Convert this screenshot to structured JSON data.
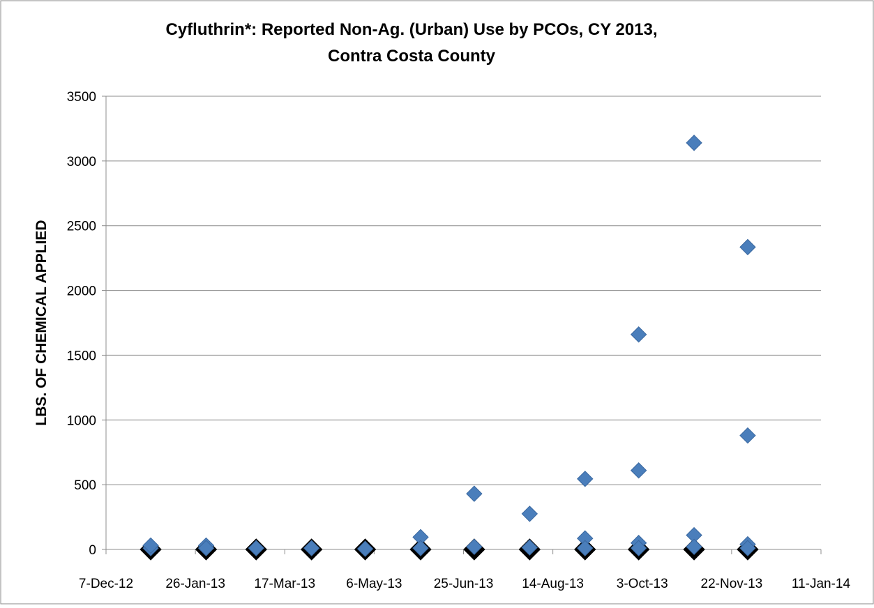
{
  "chart_data": {
    "type": "scatter",
    "title_lines": [
      "Cyfluthrin*: Reported Non-Ag. (Urban) Use by PCOs, CY 2013,",
      "Contra Costa County"
    ],
    "y_label": "LBS. OF CHEMICAL APPLIED",
    "xlim": [
      41250,
      41650
    ],
    "xticks": [
      {
        "value": 41250,
        "label": "7-Dec-12"
      },
      {
        "value": 41300,
        "label": "26-Jan-13"
      },
      {
        "value": 41350,
        "label": "17-Mar-13"
      },
      {
        "value": 41400,
        "label": "6-May-13"
      },
      {
        "value": 41450,
        "label": "25-Jun-13"
      },
      {
        "value": 41500,
        "label": "14-Aug-13"
      },
      {
        "value": 41550,
        "label": "3-Oct-13"
      },
      {
        "value": 41600,
        "label": "22-Nov-13"
      },
      {
        "value": 41650,
        "label": "11-Jan-14"
      }
    ],
    "ylim": [
      0,
      3500
    ],
    "yticks": [
      0,
      500,
      1000,
      1500,
      2000,
      2500,
      3000,
      3500
    ],
    "grid": true,
    "series": [
      {
        "color": "#000000",
        "x": [
          41275,
          41306,
          41334,
          41365,
          41395,
          41426,
          41456,
          41487,
          41518,
          41548,
          41579,
          41609
        ],
        "values": [
          0,
          0,
          0,
          0,
          0,
          0,
          0,
          0,
          0,
          0,
          0,
          0
        ]
      },
      {
        "color": "#4a7ebb",
        "x": [
          41275,
          41275,
          41306,
          41306,
          41334,
          41365,
          41395,
          41426,
          41426,
          41456,
          41456,
          41487,
          41487,
          41518,
          41518,
          41518,
          41548,
          41548,
          41548,
          41548,
          41579,
          41579,
          41579,
          41609,
          41609,
          41609,
          41609
        ],
        "values": [
          10,
          30,
          30,
          10,
          10,
          10,
          5,
          95,
          10,
          430,
          20,
          275,
          15,
          545,
          85,
          10,
          1660,
          610,
          50,
          10,
          3140,
          110,
          20,
          2335,
          880,
          40,
          10
        ]
      }
    ]
  }
}
